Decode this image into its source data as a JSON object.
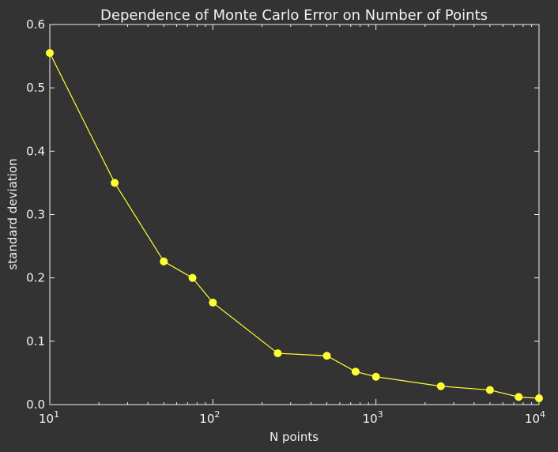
{
  "chart_data": {
    "type": "line",
    "title": "Dependence of Monte Carlo Error on Number of Points",
    "xlabel": "N points",
    "ylabel": "standard deviation",
    "xscale": "log",
    "xlim": [
      10,
      10000
    ],
    "ylim": [
      0.0,
      0.6
    ],
    "grid": false,
    "x_tick_labels": [
      {
        "value": 10,
        "base": "10",
        "exp": "1"
      },
      {
        "value": 100,
        "base": "10",
        "exp": "2"
      },
      {
        "value": 1000,
        "base": "10",
        "exp": "3"
      },
      {
        "value": 10000,
        "base": "10",
        "exp": "4"
      }
    ],
    "y_tick_labels": [
      "0.0",
      "0.1",
      "0.2",
      "0.3",
      "0.4",
      "0.5",
      "0.6"
    ],
    "series": [
      {
        "color": "#ffff33",
        "x": [
          10,
          25,
          50,
          75,
          100,
          250,
          500,
          750,
          1000,
          2500,
          5000,
          7500,
          10000
        ],
        "y": [
          0.555,
          0.35,
          0.226,
          0.2,
          0.161,
          0.081,
          0.077,
          0.052,
          0.044,
          0.029,
          0.023,
          0.012,
          0.01
        ]
      }
    ]
  },
  "colors": {
    "background": "#333333",
    "axes": "#f2f2f2",
    "line": "#ffff33"
  }
}
